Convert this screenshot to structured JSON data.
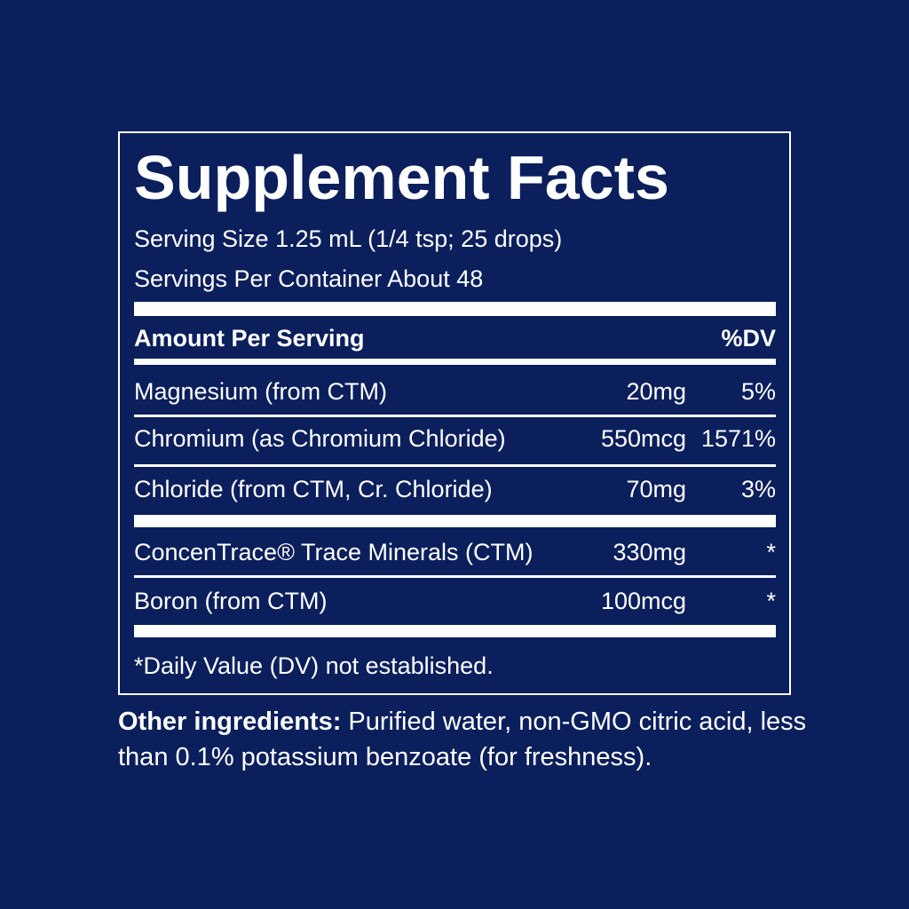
{
  "label": {
    "title": "Supplement Facts",
    "serving_size": "Serving Size 1.25 mL (1/4 tsp; 25 drops)",
    "servings_per_container": "Servings Per Container About 48",
    "header": {
      "amount": "Amount Per Serving",
      "dv": "%DV"
    },
    "rows": [
      [
        "Magnesium (from CTM)",
        "20mg",
        "5%"
      ],
      [
        "Chromium (as Chromium Chloride)",
        "550mcg",
        "1571%"
      ],
      [
        "Chloride (from CTM, Cr. Chloride)",
        "70mg",
        "3%"
      ],
      [
        "ConcenTrace® Trace Minerals (CTM)",
        "330mg",
        "*"
      ],
      [
        "Boron (from CTM)",
        "100mcg",
        "*"
      ]
    ],
    "footnote": "*Daily Value (DV) not established."
  },
  "other_ingredients": {
    "label": "Other ingredients:",
    "text": "Purified water, non-GMO citric acid, less than 0.1% potassium benzoate (for freshness)."
  }
}
